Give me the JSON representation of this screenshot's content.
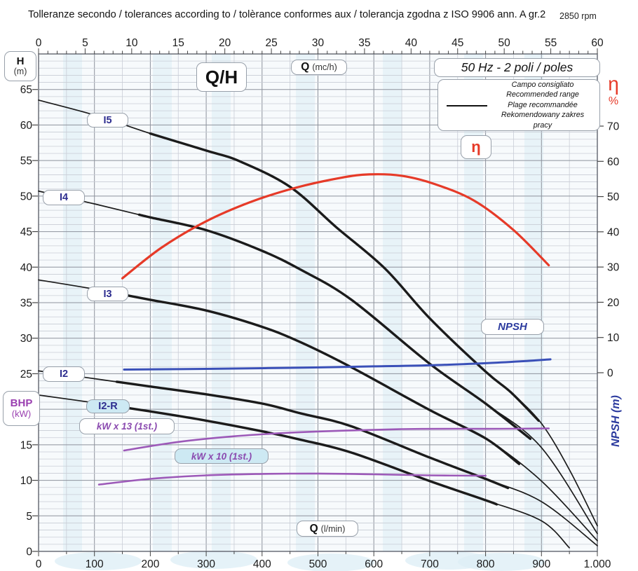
{
  "header": {
    "title": "Tolleranze secondo / tolerances according to / tolèrance conformes aux / tolerancja zgodna z ISO 9906 ann. A gr.2",
    "rpm": "2850 rpm"
  },
  "labels": {
    "h_axis": {
      "bold": "H",
      "unit": "(m)"
    },
    "qh": "Q/H",
    "q_top": {
      "bold": "Q",
      "unit": "(mc/h)"
    },
    "hz": "50 Hz - 2 poli / poles",
    "eta_curve": "η",
    "eta_axis": {
      "symbol": "η",
      "percent": "%"
    },
    "npsh_curve": "NPSH",
    "npsh_axis": "NPSH (m)",
    "bhp": {
      "bold": "BHP",
      "unit": "(kW)"
    },
    "q_bottom": {
      "bold": "Q",
      "unit": "(l/min)"
    },
    "i5": "I5",
    "i4": "I4",
    "i3": "I3",
    "i2": "I2",
    "i2r": "I2-R",
    "kw13": "kW x 13 (1st.)",
    "kw10": "kW x 10 (1st.)"
  },
  "legend": {
    "lines": [
      "Campo consigliato",
      "Recommended range",
      "Plage recommandée",
      "Rekomendowany zakres pracy"
    ]
  },
  "colors": {
    "curve_black": "#1b1b1b",
    "curve_red": "#e63a28",
    "curve_blue": "#3a50b8",
    "curve_purple": "#9c59b8",
    "grid_minor": "#c9cdd6",
    "grid_major": "#8d929c",
    "border": "#60646e",
    "tick_text": "#1a1a1a"
  },
  "chart_data": {
    "type": "line",
    "title": "Q/H",
    "x_axis_top": {
      "label": "Q (mc/h)",
      "range": [
        0,
        60
      ],
      "ticks": [
        0,
        5,
        10,
        15,
        20,
        25,
        30,
        35,
        40,
        45,
        50,
        55,
        60
      ]
    },
    "x_axis_bottom": {
      "label": "Q (l/min)",
      "range": [
        0,
        1000
      ],
      "tick_labels": [
        "0",
        "100",
        "200",
        "300",
        "400",
        "500",
        "600",
        "700",
        "800",
        "900",
        "1.000"
      ],
      "tick_values": [
        0,
        100,
        200,
        300,
        400,
        500,
        600,
        700,
        800,
        900,
        1000
      ]
    },
    "y_axis_left": {
      "label": "H (m)",
      "range": [
        0,
        70
      ],
      "ticks": [
        65,
        60,
        55,
        50,
        45,
        40,
        35,
        30,
        25,
        20,
        15,
        10,
        5,
        0
      ]
    },
    "y_axis_right": {
      "label": "η % / NPSH (m)",
      "range": [
        0,
        70
      ],
      "ticks": [
        70,
        60,
        50,
        40,
        30,
        20,
        10,
        0
      ]
    },
    "grid": {
      "x_minor_step_lmin": 50,
      "x_major_step_lmin": 100,
      "y_minor_step_m": 1,
      "y_major_step_m": 5
    },
    "series": [
      {
        "name": "I5",
        "axis": "H",
        "color": "#1b1b1b",
        "width": 1.7,
        "thick_width": 3.4,
        "thick_range": [
          200,
          895
        ],
        "points": [
          [
            0,
            63.5
          ],
          [
            100,
            61.4
          ],
          [
            200,
            58.8
          ],
          [
            300,
            56.4
          ],
          [
            360,
            54.9
          ],
          [
            450,
            51.3
          ],
          [
            533,
            45.6
          ],
          [
            620,
            39.8
          ],
          [
            700,
            32.8
          ],
          [
            800,
            25.3
          ],
          [
            845,
            22.4
          ],
          [
            900,
            18.0
          ],
          [
            950,
            11.5
          ],
          [
            1000,
            3.6
          ]
        ]
      },
      {
        "name": "I4",
        "axis": "H",
        "color": "#1b1b1b",
        "width": 1.7,
        "thick_width": 3.4,
        "thick_range": [
          180,
          880
        ],
        "points": [
          [
            0,
            50.7
          ],
          [
            100,
            48.9
          ],
          [
            200,
            47.0
          ],
          [
            300,
            45.2
          ],
          [
            400,
            42.3
          ],
          [
            470,
            39.6
          ],
          [
            560,
            35.4
          ],
          [
            700,
            26.4
          ],
          [
            800,
            20.8
          ],
          [
            900,
            14.6
          ],
          [
            1000,
            2.5
          ]
        ]
      },
      {
        "name": "I3",
        "axis": "H",
        "color": "#1b1b1b",
        "width": 1.7,
        "thick_width": 3.4,
        "thick_range": [
          160,
          860
        ],
        "points": [
          [
            0,
            38.2
          ],
          [
            100,
            36.9
          ],
          [
            200,
            35.4
          ],
          [
            300,
            33.9
          ],
          [
            400,
            31.6
          ],
          [
            470,
            29.4
          ],
          [
            560,
            25.9
          ],
          [
            700,
            19.9
          ],
          [
            800,
            15.9
          ],
          [
            900,
            9.9
          ],
          [
            1000,
            1.5
          ]
        ]
      },
      {
        "name": "I2",
        "axis": "H",
        "color": "#1b1b1b",
        "width": 1.7,
        "thick_width": 3.4,
        "thick_range": [
          140,
          840
        ],
        "points": [
          [
            0,
            25.4
          ],
          [
            100,
            24.3
          ],
          [
            200,
            23.2
          ],
          [
            300,
            22.1
          ],
          [
            400,
            20.8
          ],
          [
            470,
            19.4
          ],
          [
            560,
            17.6
          ],
          [
            700,
            13.2
          ],
          [
            800,
            10.2
          ],
          [
            900,
            7.0
          ],
          [
            1000,
            0.8
          ]
        ]
      },
      {
        "name": "I2-R",
        "axis": "H",
        "color": "#1b1b1b",
        "width": 1.7,
        "thick_width": 3.4,
        "thick_range": [
          140,
          820
        ],
        "points": [
          [
            0,
            22.0
          ],
          [
            100,
            20.9
          ],
          [
            200,
            19.7
          ],
          [
            300,
            18.4
          ],
          [
            400,
            16.9
          ],
          [
            470,
            15.7
          ],
          [
            560,
            13.9
          ],
          [
            700,
            9.9
          ],
          [
            800,
            7.2
          ],
          [
            900,
            4.3
          ],
          [
            950,
            0.5
          ]
        ]
      },
      {
        "name": "kW x 13 (1st.)",
        "axis": "H",
        "color": "#9c59b8",
        "width": 2.6,
        "thick_width": null,
        "thick_range": null,
        "points": [
          [
            153,
            14.2
          ],
          [
            250,
            15.4
          ],
          [
            350,
            16.2
          ],
          [
            450,
            16.7
          ],
          [
            550,
            17.0
          ],
          [
            650,
            17.2
          ],
          [
            750,
            17.25
          ],
          [
            830,
            17.25
          ],
          [
            913,
            17.3
          ]
        ]
      },
      {
        "name": "kW x 10 (1st.)",
        "axis": "H",
        "color": "#9c59b8",
        "width": 2.6,
        "thick_width": null,
        "thick_range": null,
        "points": [
          [
            108,
            9.4
          ],
          [
            200,
            10.2
          ],
          [
            300,
            10.7
          ],
          [
            400,
            10.9
          ],
          [
            500,
            10.95
          ],
          [
            600,
            10.85
          ],
          [
            700,
            10.7
          ],
          [
            800,
            10.65
          ]
        ]
      },
      {
        "name": "NPSH",
        "axis": "eta",
        "color": "#3a50b8",
        "width": 3.0,
        "thick_width": null,
        "thick_range": null,
        "points": [
          [
            153,
            0.9
          ],
          [
            300,
            1.1
          ],
          [
            450,
            1.4
          ],
          [
            600,
            1.8
          ],
          [
            700,
            2.1
          ],
          [
            800,
            2.7
          ],
          [
            870,
            3.3
          ],
          [
            916,
            3.8
          ]
        ]
      },
      {
        "name": "η",
        "axis": "eta",
        "color": "#e63a28",
        "width": 3.2,
        "thick_width": null,
        "thick_range": null,
        "points": [
          [
            150,
            26.8
          ],
          [
            220,
            35.5
          ],
          [
            300,
            43.0
          ],
          [
            380,
            48.5
          ],
          [
            460,
            52.5
          ],
          [
            540,
            55.3
          ],
          [
            592,
            56.3
          ],
          [
            650,
            55.9
          ],
          [
            710,
            53.5
          ],
          [
            780,
            48.8
          ],
          [
            850,
            40.5
          ],
          [
            913,
            30.5
          ]
        ]
      }
    ]
  }
}
